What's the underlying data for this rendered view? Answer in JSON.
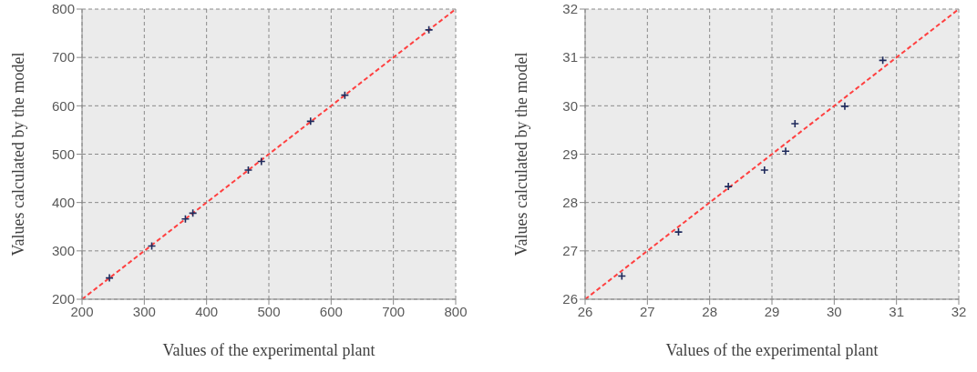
{
  "chart_data": [
    {
      "type": "scatter",
      "xlabel": "Values of the experimental plant",
      "ylabel": "Values calculated  by the model",
      "grid": true,
      "xlim": [
        200,
        800
      ],
      "ylim": [
        200,
        800
      ],
      "xticks": [
        200,
        300,
        400,
        500,
        600,
        700,
        800
      ],
      "yticks": [
        200,
        300,
        400,
        500,
        600,
        700,
        800
      ],
      "series": [
        {
          "color": "#1f2a5c",
          "marker": "cross",
          "x": [
            244,
            312,
            366,
            378,
            467,
            488,
            567,
            622,
            757
          ],
          "values": [
            244,
            310,
            366,
            378,
            467,
            485,
            568,
            622,
            757
          ]
        },
        {
          "type": "line",
          "color": "#ff4040",
          "marker": "none",
          "line_style": "dashed",
          "x": [
            200,
            800
          ],
          "values": [
            200,
            800
          ]
        }
      ]
    },
    {
      "type": "scatter",
      "xlabel": "Values of the experimental plant",
      "ylabel": "Values calculated  by the model",
      "grid": true,
      "xlim": [
        26,
        32
      ],
      "ylim": [
        26,
        32
      ],
      "xticks": [
        26,
        27,
        28,
        29,
        30,
        31,
        32
      ],
      "yticks": [
        26,
        27,
        28,
        29,
        30,
        31,
        32
      ],
      "series": [
        {
          "color": "#1f2a5c",
          "marker": "cross",
          "x": [
            26.59,
            27.5,
            28.3,
            28.88,
            29.22,
            29.37,
            30.17,
            30.78
          ],
          "values": [
            26.48,
            27.39,
            28.33,
            28.67,
            29.06,
            29.63,
            29.99,
            30.94
          ]
        },
        {
          "type": "line",
          "color": "#ff4040",
          "marker": "none",
          "line_style": "dashed",
          "x": [
            26,
            32
          ],
          "values": [
            26,
            32
          ]
        }
      ]
    }
  ]
}
